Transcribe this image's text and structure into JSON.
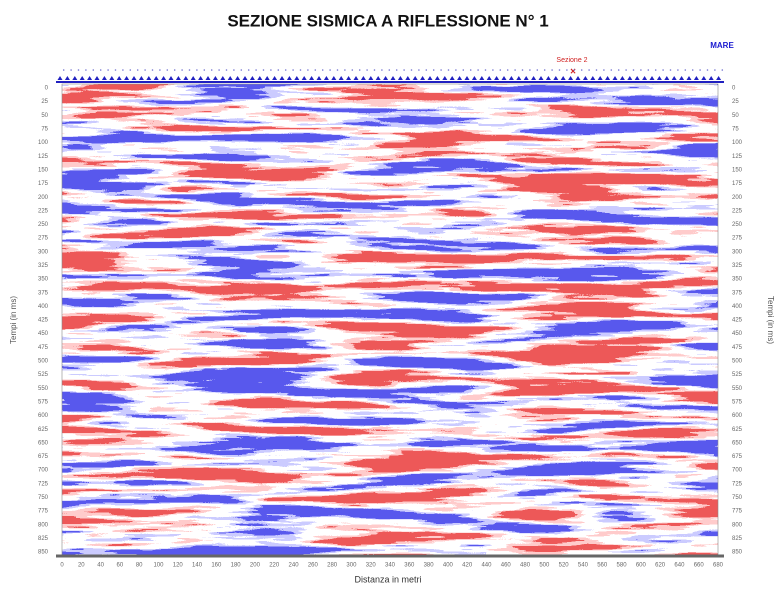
{
  "title": "SEZIONE SISMICA A RIFLESSIONE N° 1",
  "sea_label": "MARE",
  "marker_label": "Sezione 2",
  "x_axis": {
    "label": "Distanza in metri",
    "ticks": [
      0,
      20,
      40,
      60,
      80,
      100,
      120,
      140,
      160,
      180,
      200,
      220,
      240,
      260,
      280,
      300,
      320,
      340,
      360,
      380,
      400,
      420,
      440,
      460,
      480,
      500,
      520,
      540,
      560,
      580,
      600,
      620,
      640,
      660,
      680
    ]
  },
  "y_axis": {
    "label": "Tempi (in ms)",
    "ticks": [
      0,
      25,
      50,
      75,
      100,
      125,
      150,
      175,
      200,
      225,
      250,
      275,
      300,
      325,
      350,
      375,
      400,
      425,
      450,
      475,
      500,
      525,
      550,
      575,
      600,
      625,
      650,
      675,
      700,
      725,
      750,
      775,
      800,
      825,
      850
    ]
  }
}
